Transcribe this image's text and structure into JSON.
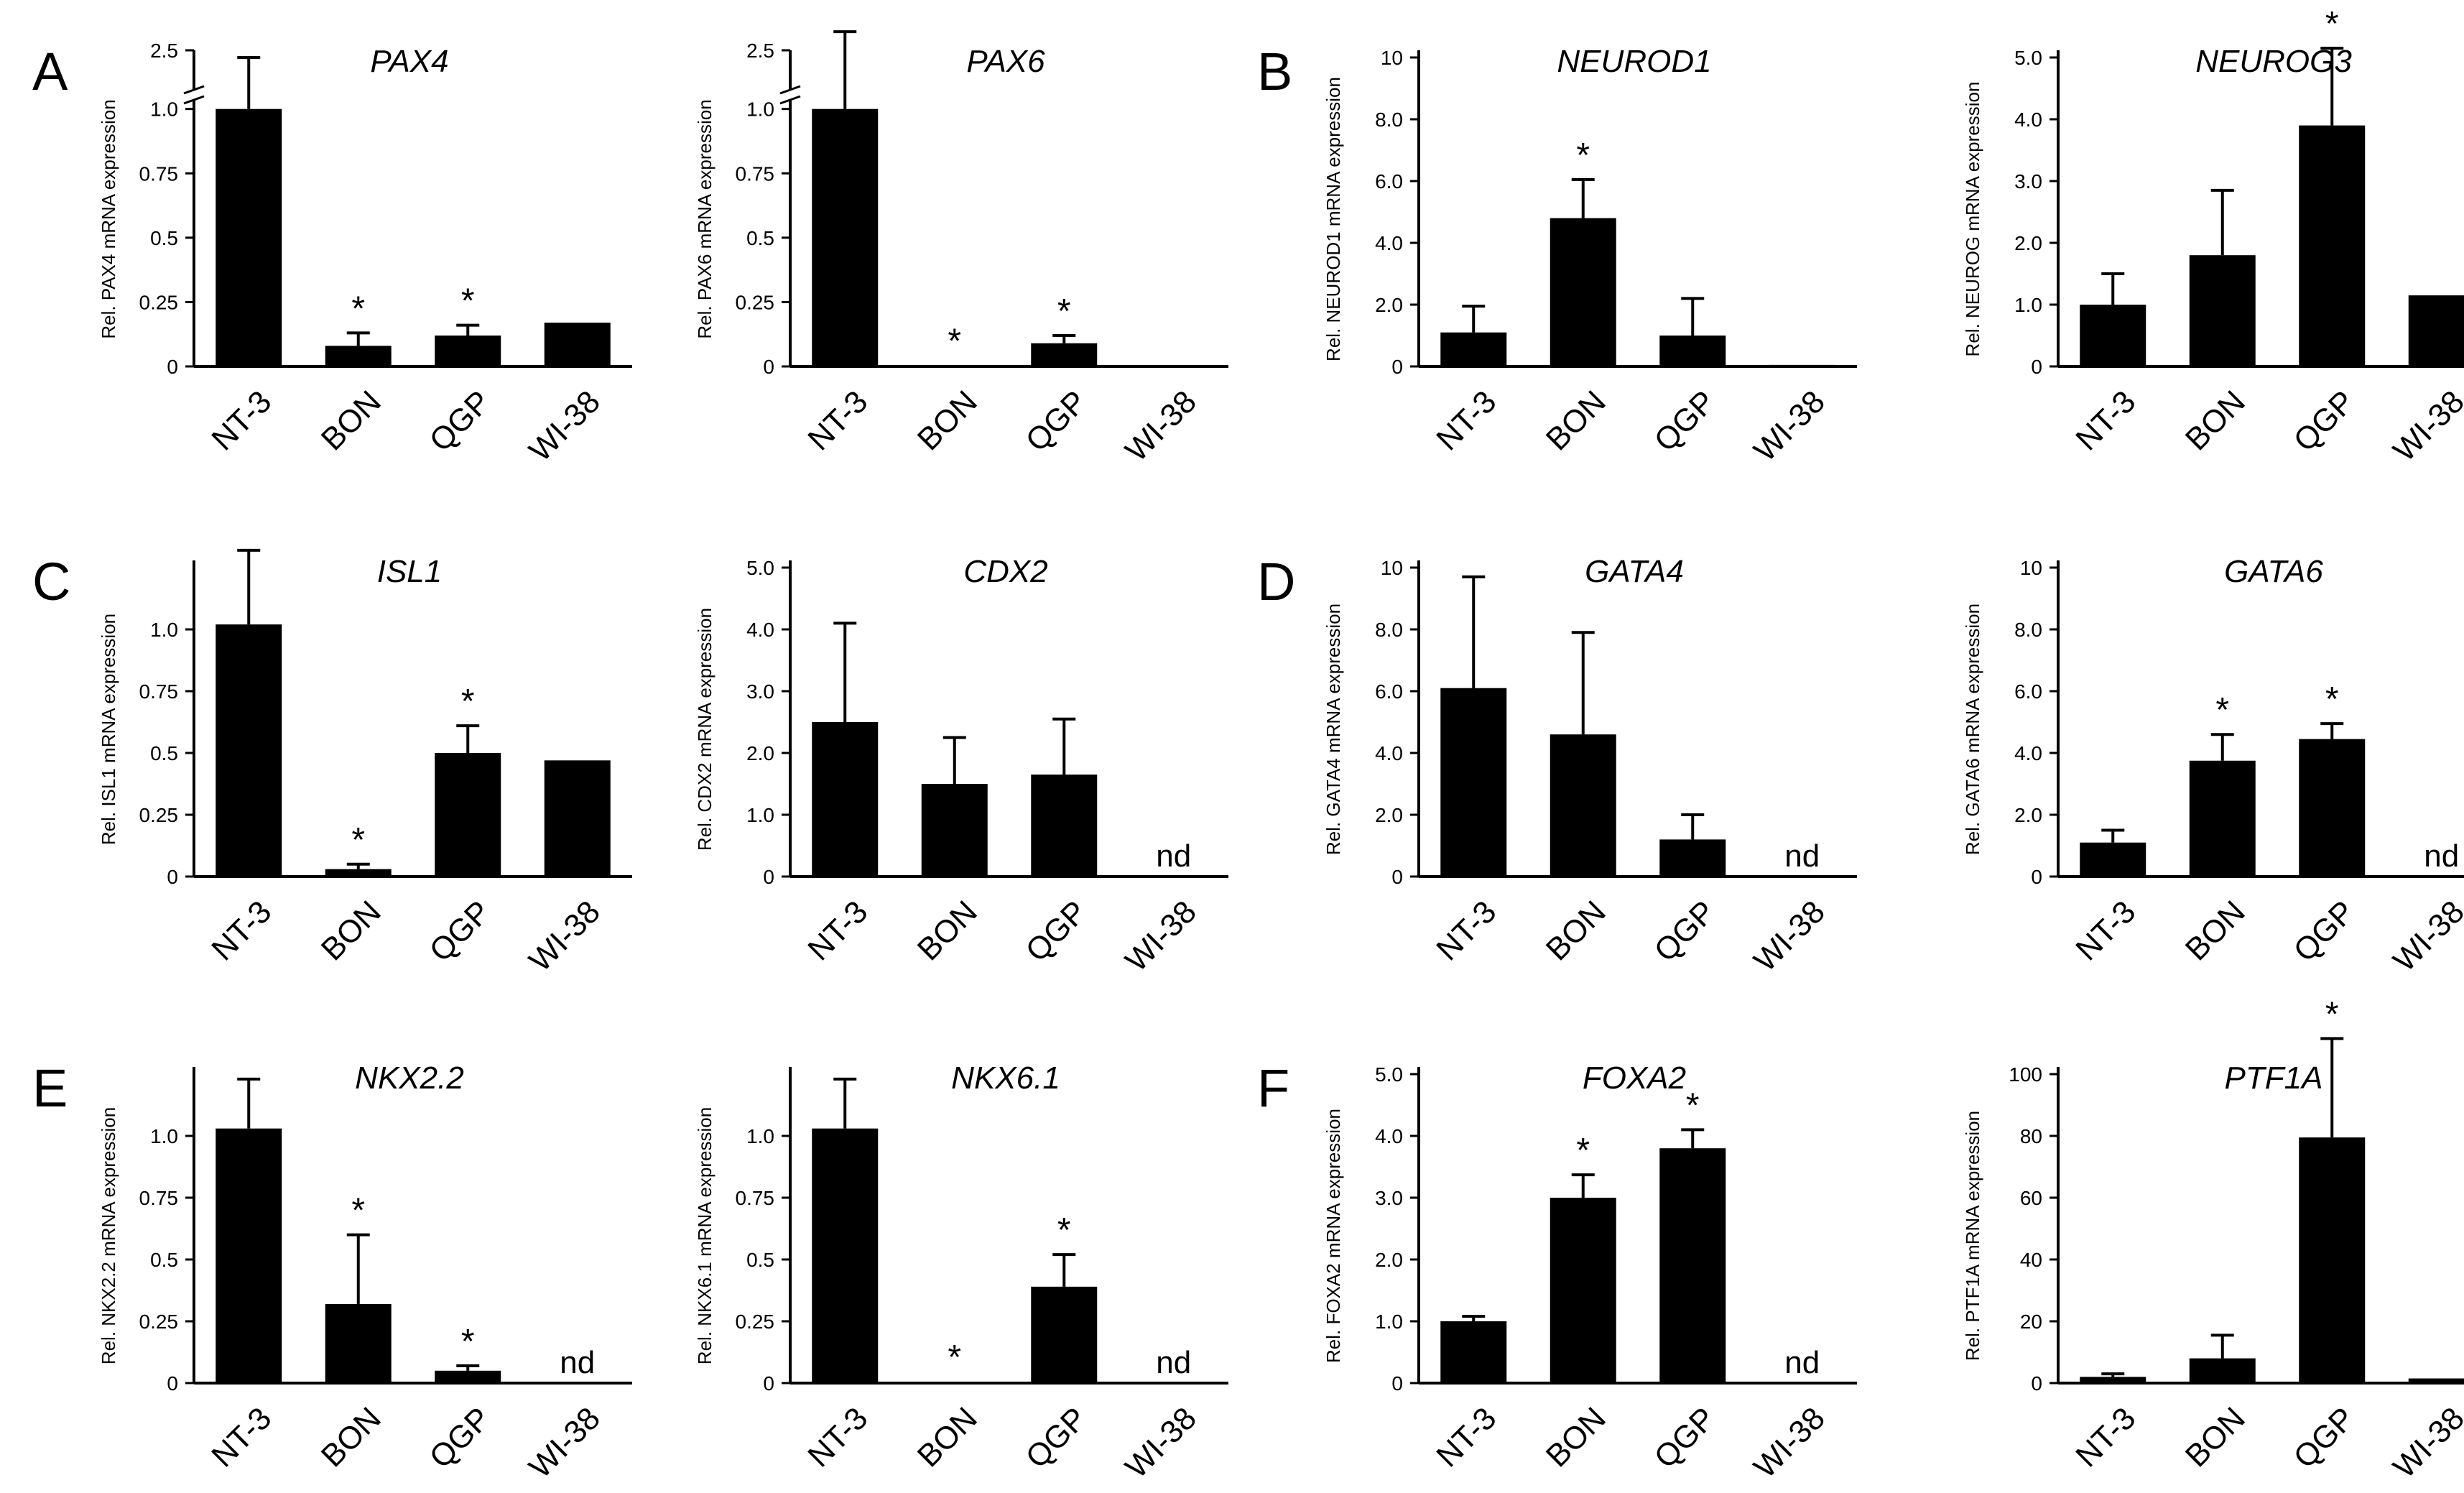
{
  "categories": [
    "NT-3",
    "BON",
    "QGP",
    "WI-38"
  ],
  "colors": {
    "bar": "#000000",
    "axis": "#000000",
    "background": "#ffffff"
  },
  "panel_labels": [
    "A",
    "B",
    "C",
    "D",
    "E",
    "F"
  ],
  "chart_data": [
    {
      "type": "bar",
      "panel_label": "A",
      "title": "PAX4",
      "ylabel": "Rel. PAX4 mRNA expression",
      "axis_break": true,
      "ylim": [
        0,
        1.2
      ],
      "yticks": [
        "0",
        "0.25",
        "0.5",
        "0.75",
        "1.0",
        "2.5"
      ],
      "categories": [
        "NT-3",
        "BON",
        "QGP",
        "WI-38"
      ],
      "values": [
        1.0,
        0.08,
        0.12,
        0.17
      ],
      "errors": [
        0.2,
        0.05,
        0.04,
        null
      ],
      "significant": [
        false,
        true,
        true,
        false
      ],
      "labels": [
        "",
        "",
        "",
        ""
      ]
    },
    {
      "type": "bar",
      "panel_label": "",
      "title": "PAX6",
      "ylabel": "Rel. PAX6 mRNA expression",
      "axis_break": true,
      "ylim": [
        0,
        1.2
      ],
      "yticks": [
        "0",
        "0.25",
        "0.5",
        "0.75",
        "1.0",
        "2.5"
      ],
      "categories": [
        "NT-3",
        "BON",
        "QGP",
        "WI-38"
      ],
      "values": [
        1.0,
        0.004,
        0.09,
        0.0
      ],
      "errors": [
        0.3,
        null,
        0.03,
        null
      ],
      "significant": [
        false,
        true,
        true,
        false
      ],
      "labels": [
        "",
        "",
        "",
        ""
      ]
    },
    {
      "type": "bar",
      "panel_label": "B",
      "title": "NEUROD1",
      "ylabel": "Rel. NEUROD1 mRNA expression",
      "axis_break": false,
      "ylim": [
        0,
        10
      ],
      "yticks": [
        "0",
        "2.0",
        "4.0",
        "6.0",
        "8.0",
        "10"
      ],
      "categories": [
        "NT-3",
        "BON",
        "QGP",
        "WI-38"
      ],
      "values": [
        1.1,
        4.8,
        1.0,
        0.05
      ],
      "errors": [
        0.85,
        1.25,
        1.2,
        null
      ],
      "significant": [
        false,
        true,
        false,
        false
      ],
      "labels": [
        "",
        "",
        "",
        ""
      ]
    },
    {
      "type": "bar",
      "panel_label": "",
      "title": "NEUROG3",
      "ylabel": "Rel. NEUROG mRNA expression",
      "axis_break": false,
      "ylim": [
        0,
        5
      ],
      "yticks": [
        "0",
        "1.0",
        "2.0",
        "3.0",
        "4.0",
        "5.0"
      ],
      "categories": [
        "NT-3",
        "BON",
        "QGP",
        "WI-38"
      ],
      "values": [
        1.0,
        1.8,
        3.9,
        1.15
      ],
      "errors": [
        0.5,
        1.05,
        1.25,
        null
      ],
      "significant": [
        false,
        false,
        true,
        false
      ],
      "labels": [
        "",
        "",
        "",
        ""
      ]
    },
    {
      "type": "bar",
      "panel_label": "C",
      "title": "ISL1",
      "ylabel": "Rel. ISL1 mRNA expression",
      "axis_break": false,
      "ylim": [
        0,
        1.25
      ],
      "yticks": [
        "0",
        "0.25",
        "0.5",
        "0.75",
        "1.0"
      ],
      "categories": [
        "NT-3",
        "BON",
        "QGP",
        "WI-38"
      ],
      "values": [
        1.02,
        0.03,
        0.5,
        0.47
      ],
      "errors": [
        0.3,
        0.02,
        0.11,
        null
      ],
      "significant": [
        false,
        true,
        true,
        false
      ],
      "labels": [
        "",
        "",
        "",
        ""
      ]
    },
    {
      "type": "bar",
      "panel_label": "",
      "title": "CDX2",
      "ylabel": "Rel. CDX2 mRNA expression",
      "axis_break": false,
      "ylim": [
        0,
        5
      ],
      "yticks": [
        "0",
        "1.0",
        "2.0",
        "3.0",
        "4.0",
        "5.0"
      ],
      "categories": [
        "NT-3",
        "BON",
        "QGP",
        "WI-38"
      ],
      "values": [
        2.5,
        1.5,
        1.65,
        null
      ],
      "errors": [
        1.6,
        0.75,
        0.9,
        null
      ],
      "significant": [
        false,
        false,
        false,
        false
      ],
      "labels": [
        "",
        "",
        "",
        "nd"
      ]
    },
    {
      "type": "bar",
      "panel_label": "D",
      "title": "GATA4",
      "ylabel": "Rel. GATA4 mRNA expression",
      "axis_break": false,
      "ylim": [
        0,
        10
      ],
      "yticks": [
        "0",
        "2.0",
        "4.0",
        "6.0",
        "8.0",
        "10"
      ],
      "categories": [
        "NT-3",
        "BON",
        "QGP",
        "WI-38"
      ],
      "values": [
        6.1,
        4.6,
        1.2,
        null
      ],
      "errors": [
        3.6,
        3.3,
        0.8,
        null
      ],
      "significant": [
        false,
        false,
        false,
        false
      ],
      "labels": [
        "",
        "",
        "",
        "nd"
      ]
    },
    {
      "type": "bar",
      "panel_label": "",
      "title": "GATA6",
      "ylabel": "Rel. GATA6 mRNA expression",
      "axis_break": false,
      "ylim": [
        0,
        10
      ],
      "yticks": [
        "0",
        "2.0",
        "4.0",
        "6.0",
        "8.0",
        "10"
      ],
      "categories": [
        "NT-3",
        "BON",
        "QGP",
        "WI-38"
      ],
      "values": [
        1.1,
        3.75,
        4.45,
        null
      ],
      "errors": [
        0.4,
        0.85,
        0.5,
        null
      ],
      "significant": [
        false,
        true,
        true,
        false
      ],
      "labels": [
        "",
        "",
        "",
        "nd"
      ]
    },
    {
      "type": "bar",
      "panel_label": "E",
      "title": "NKX2.2",
      "ylabel": "Rel. NKX2.2 mRNA expression",
      "axis_break": false,
      "ylim": [
        0,
        1.25
      ],
      "yticks": [
        "0",
        "0.25",
        "0.5",
        "0.75",
        "1.0"
      ],
      "categories": [
        "NT-3",
        "BON",
        "QGP",
        "WI-38"
      ],
      "values": [
        1.03,
        0.32,
        0.05,
        null
      ],
      "errors": [
        0.2,
        0.28,
        0.02,
        null
      ],
      "significant": [
        false,
        true,
        true,
        false
      ],
      "labels": [
        "",
        "",
        "",
        "nd"
      ]
    },
    {
      "type": "bar",
      "panel_label": "",
      "title": "NKX6.1",
      "ylabel": "Rel. NKX6.1 mRNA expression",
      "axis_break": false,
      "ylim": [
        0,
        1.25
      ],
      "yticks": [
        "0",
        "0.25",
        "0.5",
        "0.75",
        "1.0"
      ],
      "categories": [
        "NT-3",
        "BON",
        "QGP",
        "WI-38"
      ],
      "values": [
        1.03,
        0.0,
        0.39,
        null
      ],
      "errors": [
        0.2,
        null,
        0.13,
        null
      ],
      "significant": [
        false,
        true,
        true,
        false
      ],
      "labels": [
        "",
        "",
        "",
        "nd"
      ]
    },
    {
      "type": "bar",
      "panel_label": "F",
      "title": "FOXA2",
      "ylabel": "Rel. FOXA2 mRNA expression",
      "axis_break": false,
      "ylim": [
        0,
        5
      ],
      "yticks": [
        "0",
        "1.0",
        "2.0",
        "3.0",
        "4.0",
        "5.0"
      ],
      "categories": [
        "NT-3",
        "BON",
        "QGP",
        "WI-38"
      ],
      "values": [
        1.0,
        3.0,
        3.8,
        null
      ],
      "errors": [
        0.08,
        0.37,
        0.3,
        null
      ],
      "significant": [
        false,
        true,
        true,
        false
      ],
      "labels": [
        "",
        "",
        "",
        "nd"
      ]
    },
    {
      "type": "bar",
      "panel_label": "",
      "title": "PTF1A",
      "ylabel": "Rel. PTF1A mRNA expression",
      "axis_break": false,
      "ylim": [
        0,
        100
      ],
      "yticks": [
        "0",
        "20",
        "40",
        "60",
        "80",
        "100"
      ],
      "categories": [
        "NT-3",
        "BON",
        "QGP",
        "WI-38"
      ],
      "values": [
        2.0,
        8.0,
        79.5,
        1.5
      ],
      "errors": [
        1.0,
        7.5,
        32.0,
        null
      ],
      "significant": [
        false,
        false,
        true,
        false
      ],
      "labels": [
        "",
        "",
        "",
        ""
      ]
    }
  ]
}
